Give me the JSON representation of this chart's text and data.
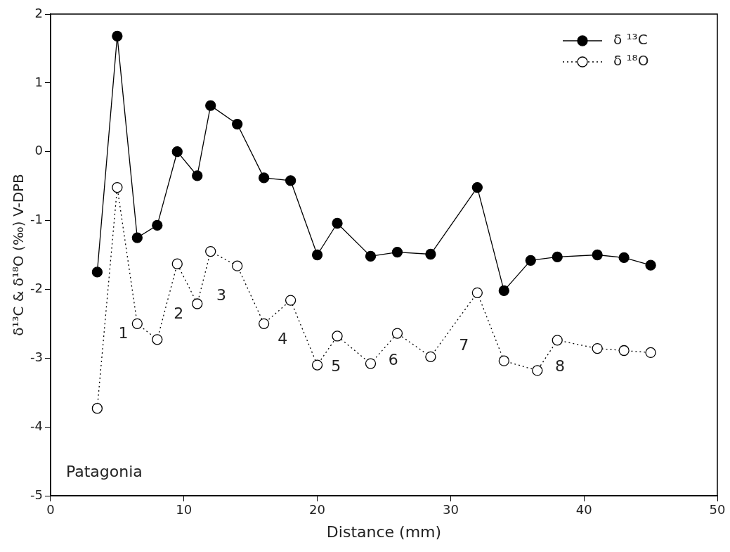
{
  "chart_data": {
    "type": "line",
    "xlabel": "Distance (mm)",
    "ylabel": "δ¹³C & δ¹⁸O (‰) V-DPB",
    "xlim": [
      0,
      50
    ],
    "xticks": [
      0,
      10,
      20,
      30,
      40,
      50
    ],
    "ylim": [
      -5,
      2
    ],
    "yticks": [
      -5,
      -4,
      -3,
      -2,
      -1,
      0,
      1,
      2
    ],
    "grid": false,
    "legend": "top right",
    "series": [
      {
        "name": "δ ¹³C",
        "color": "#000000",
        "marker": "circle",
        "line_style": "solid",
        "x": [
          3.5,
          5,
          6.5,
          8,
          9.5,
          11,
          12,
          14,
          16,
          18,
          20,
          21.5,
          24,
          26,
          28.5,
          32,
          34,
          36,
          38,
          41,
          43,
          45
        ],
        "values": [
          -1.75,
          1.68,
          -1.25,
          -1.07,
          0,
          -0.35,
          0.67,
          0.4,
          -0.38,
          -0.42,
          -1.5,
          -1.04,
          -1.52,
          -1.46,
          -1.49,
          -0.52,
          -2.02,
          -1.58,
          -1.53,
          -1.5,
          -1.54,
          -1.65
        ]
      },
      {
        "name": "δ ¹⁸O",
        "color": "#000000",
        "marker": "circle",
        "line_style": "dotted",
        "x": [
          3.5,
          5,
          6.5,
          8,
          9.5,
          11,
          12,
          14,
          16,
          18,
          20,
          21.5,
          24,
          26,
          28.5,
          32,
          34,
          36.5,
          38,
          41,
          43,
          45
        ],
        "values": [
          -3.73,
          -0.52,
          -2.5,
          -2.73,
          -1.63,
          -2.21,
          -1.45,
          -1.66,
          -2.5,
          -2.16,
          -3.1,
          -2.68,
          -3.08,
          -2.64,
          -2.98,
          -2.05,
          -3.04,
          -3.18,
          -2.74,
          -2.86,
          -2.89,
          -2.92
        ]
      }
    ],
    "annotations": [
      "1",
      "2",
      "3",
      "4",
      "5",
      "6",
      "7",
      "8",
      "Patagonia"
    ]
  }
}
